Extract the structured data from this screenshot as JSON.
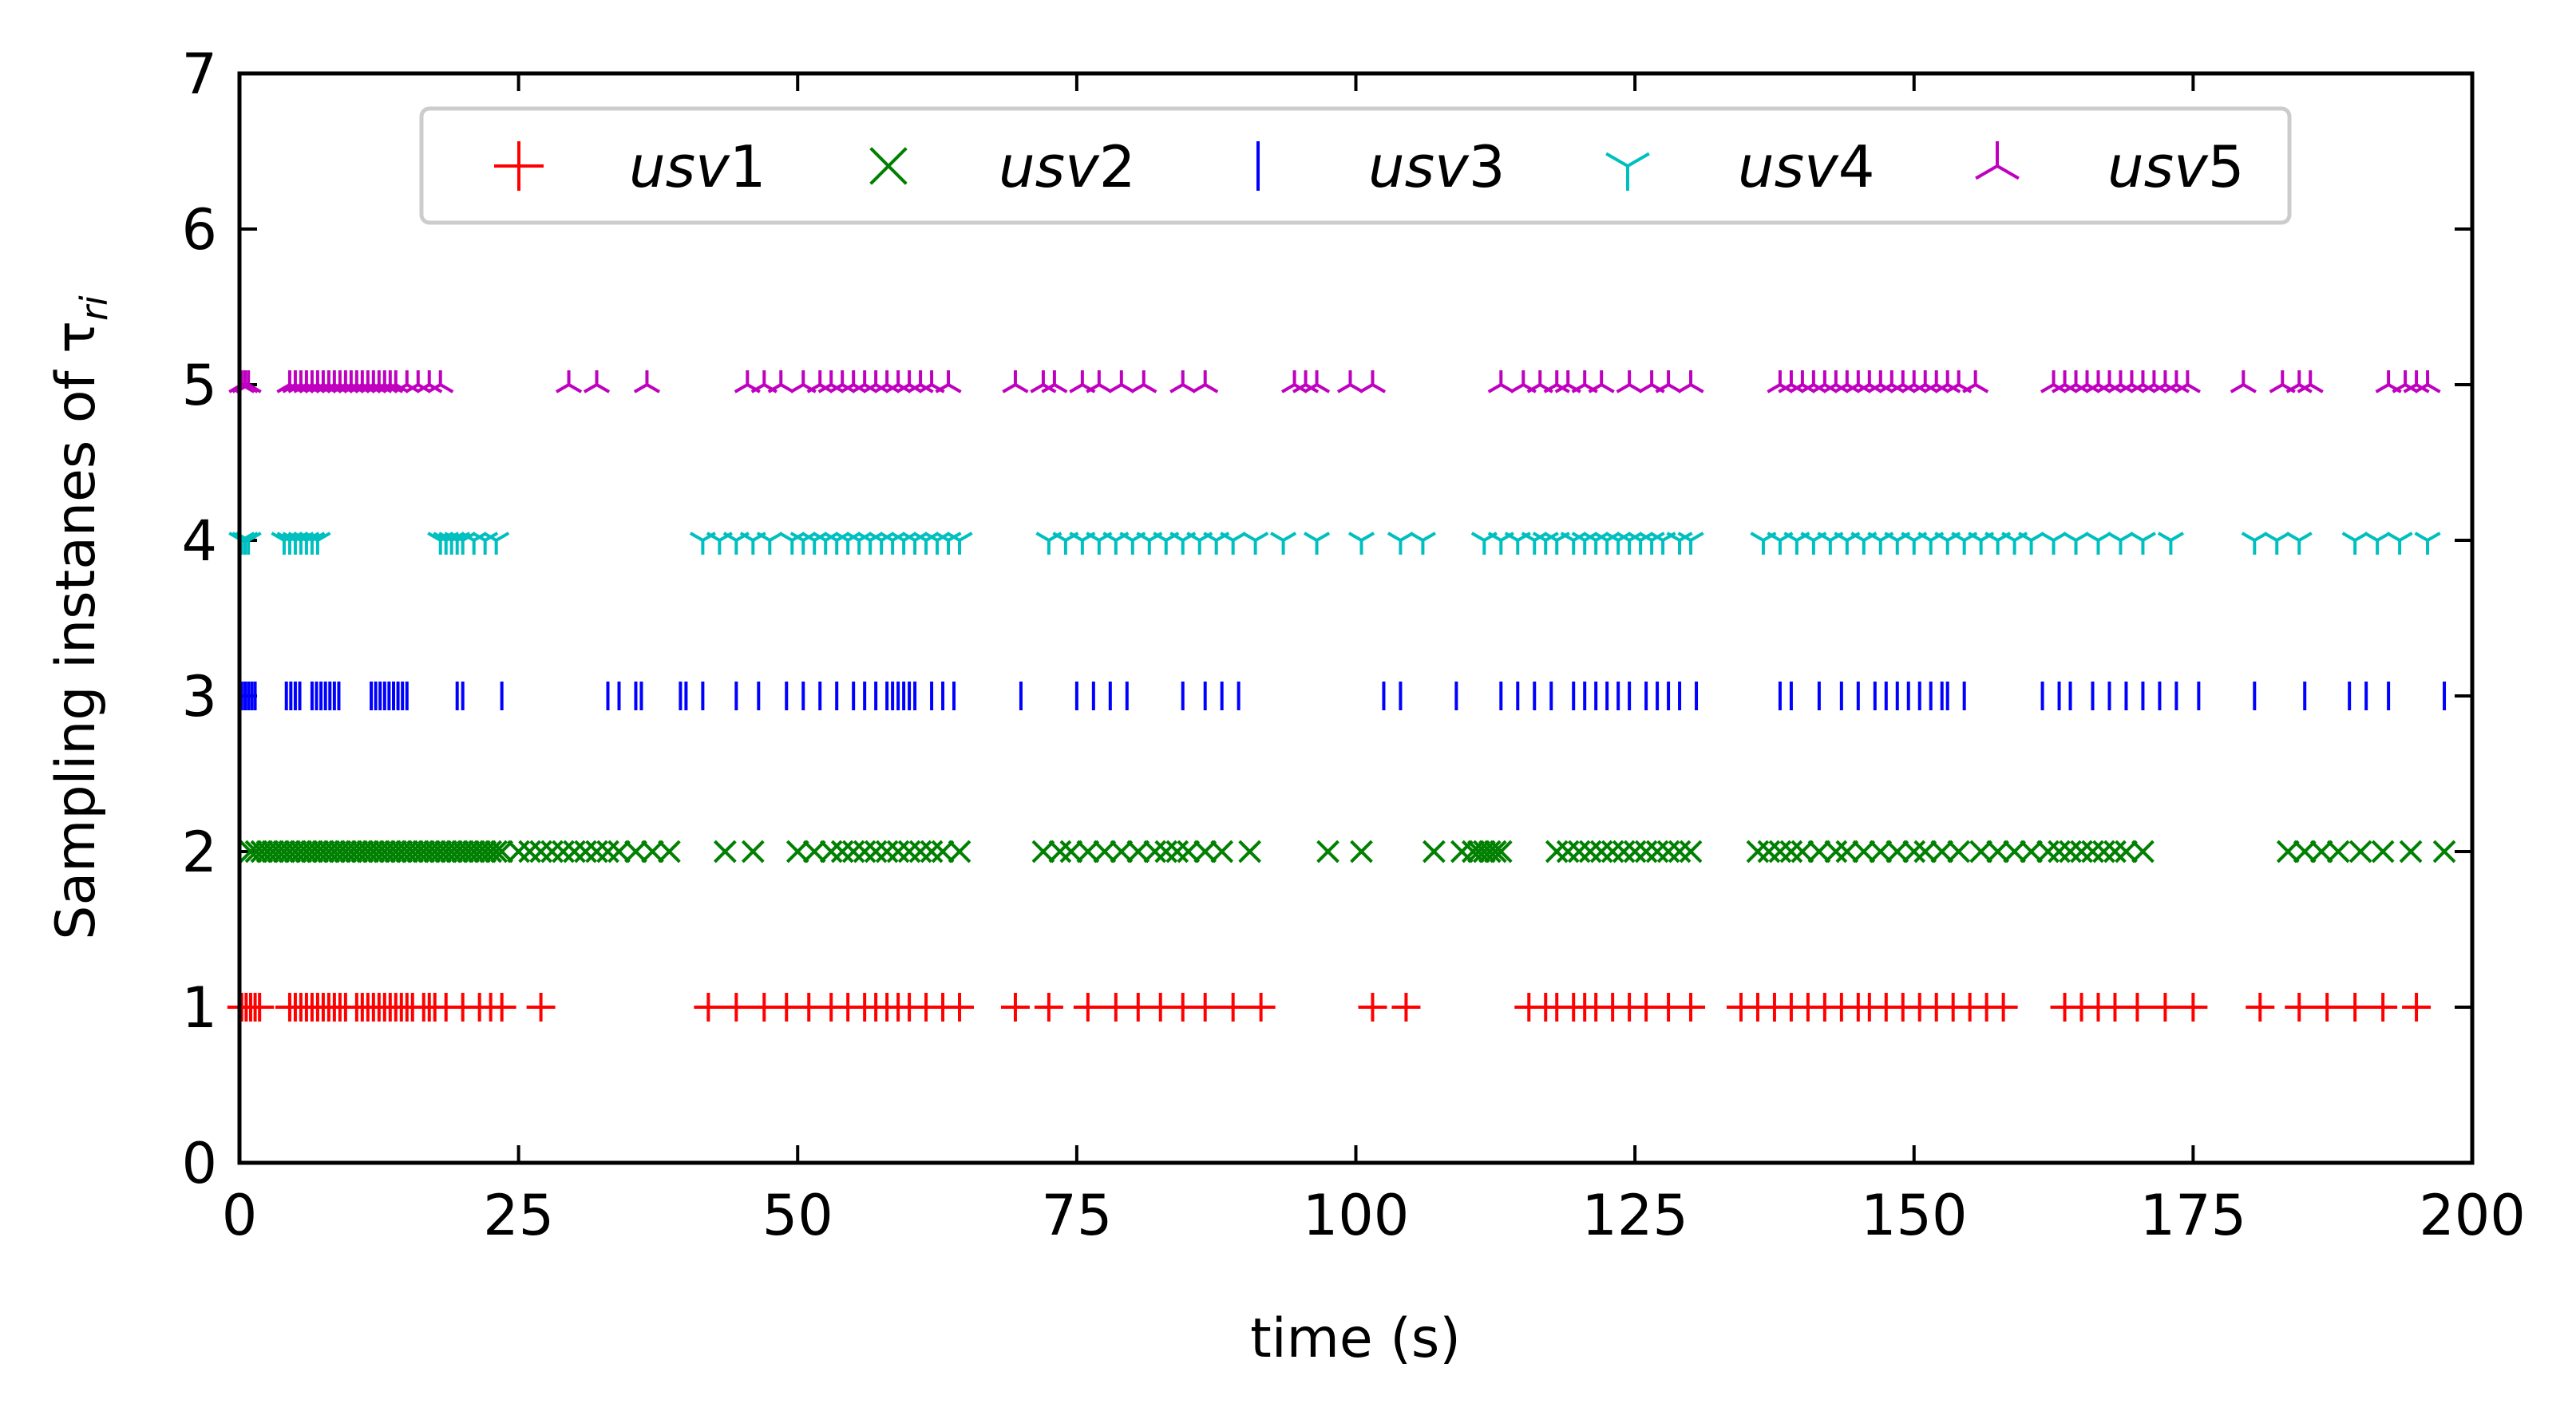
{
  "chart_data": {
    "type": "scatter",
    "title": "",
    "xlabel": "time (s)",
    "ylabel": "Sampling instanes of τ",
    "ylabel_subscript": "ri",
    "xlim": [
      0,
      200
    ],
    "ylim": [
      0,
      7
    ],
    "xticks": [
      0,
      25,
      50,
      75,
      100,
      125,
      150,
      175,
      200
    ],
    "yticks": [
      0,
      1,
      2,
      3,
      4,
      5,
      6,
      7
    ],
    "grid": false,
    "legend_placement": "top-center",
    "legend_columns": 5,
    "series": [
      {
        "name": "usv1",
        "name_base": "usv",
        "name_number": "1",
        "y": 1,
        "marker": "plus",
        "color": "#ff0000",
        "x": [
          0.2,
          0.6,
          1.0,
          1.4,
          1.8,
          4.5,
          5.0,
          5.5,
          6.0,
          6.5,
          7.0,
          7.5,
          8.0,
          8.5,
          9.0,
          9.5,
          10.5,
          11.0,
          11.5,
          12.0,
          12.5,
          13.0,
          13.5,
          14.0,
          14.5,
          15.0,
          15.5,
          16.5,
          17.0,
          17.5,
          18.5,
          20.0,
          21.5,
          22.5,
          23.5,
          27.0,
          42.0,
          44.5,
          47.0,
          49.0,
          51.0,
          53.0,
          54.5,
          56.0,
          57.0,
          58.0,
          59.0,
          60.0,
          61.5,
          63.0,
          64.5,
          69.5,
          72.5,
          76.0,
          78.5,
          80.5,
          82.5,
          84.5,
          86.5,
          89.0,
          91.5,
          101.5,
          104.5,
          115.5,
          117.0,
          118.0,
          119.5,
          120.5,
          121.5,
          123.0,
          124.5,
          126.0,
          128.0,
          130.0,
          134.5,
          136.0,
          137.5,
          139.0,
          140.5,
          142.0,
          143.5,
          145.0,
          146.0,
          147.5,
          149.0,
          150.5,
          152.0,
          153.5,
          155.0,
          156.5,
          158.0,
          163.5,
          165.0,
          166.5,
          168.0,
          170.0,
          172.5,
          175.0,
          181.0,
          184.5,
          187.0,
          189.5,
          192.0,
          195.0
        ]
      },
      {
        "name": "usv2",
        "name_base": "usv",
        "name_number": "2",
        "y": 2,
        "marker": "x",
        "color": "#008000",
        "x": [
          1.0,
          1.5,
          2.0,
          2.5,
          3.0,
          3.5,
          4.0,
          4.5,
          5.0,
          5.5,
          6.0,
          6.5,
          7.0,
          7.5,
          8.0,
          8.5,
          9.0,
          9.5,
          10.0,
          10.5,
          11.0,
          11.5,
          12.0,
          12.5,
          13.0,
          13.5,
          14.0,
          14.5,
          15.0,
          15.5,
          16.0,
          16.5,
          17.0,
          17.5,
          18.0,
          18.5,
          19.0,
          19.5,
          20.0,
          20.5,
          21.0,
          21.5,
          22.0,
          22.5,
          23.0,
          23.5,
          25.0,
          26.0,
          27.0,
          28.0,
          29.0,
          30.0,
          31.0,
          32.0,
          33.0,
          34.0,
          35.5,
          37.0,
          38.5,
          43.5,
          46.0,
          50.0,
          51.5,
          53.0,
          54.0,
          55.0,
          56.0,
          57.0,
          58.0,
          59.0,
          60.0,
          61.0,
          62.0,
          63.0,
          64.5,
          72.0,
          73.5,
          74.5,
          76.0,
          77.5,
          79.0,
          80.5,
          82.0,
          83.0,
          84.0,
          85.0,
          86.5,
          88.0,
          90.5,
          97.5,
          100.5,
          107.0,
          109.5,
          110.5,
          111.0,
          111.5,
          112.0,
          112.5,
          113.0,
          118.0,
          119.0,
          120.0,
          121.0,
          122.0,
          123.0,
          124.0,
          125.0,
          126.0,
          127.0,
          128.0,
          129.0,
          130.0,
          136.0,
          137.0,
          138.0,
          139.0,
          140.0,
          141.5,
          143.0,
          144.0,
          145.5,
          147.0,
          148.5,
          150.0,
          151.0,
          152.5,
          154.0,
          156.0,
          157.5,
          159.0,
          160.5,
          162.0,
          163.0,
          164.0,
          165.0,
          166.0,
          167.0,
          168.0,
          169.0,
          170.5,
          183.5,
          185.0,
          186.5,
          188.0,
          190.0,
          192.0,
          194.5,
          197.5
        ]
      },
      {
        "name": "usv3",
        "name_base": "usv",
        "name_number": "3",
        "y": 3,
        "marker": "vline",
        "color": "#0000ff",
        "x": [
          0.2,
          0.5,
          0.8,
          1.1,
          1.4,
          4.2,
          4.6,
          5.0,
          5.4,
          6.5,
          6.9,
          7.3,
          7.7,
          8.1,
          8.5,
          8.9,
          11.8,
          12.2,
          12.6,
          13.0,
          13.4,
          13.8,
          14.2,
          14.6,
          15.0,
          19.5,
          20.0,
          23.5,
          33.0,
          34.0,
          35.5,
          36.0,
          39.5,
          40.0,
          41.5,
          44.5,
          46.5,
          49.0,
          50.5,
          52.0,
          53.5,
          55.0,
          56.0,
          57.0,
          58.0,
          58.5,
          59.0,
          59.5,
          60.0,
          60.5,
          62.0,
          63.0,
          64.0,
          70.0,
          75.0,
          76.5,
          78.0,
          79.5,
          84.5,
          86.5,
          88.0,
          89.5,
          102.5,
          104.0,
          109.0,
          113.0,
          114.5,
          116.0,
          117.5,
          119.5,
          120.5,
          121.5,
          122.5,
          123.5,
          124.5,
          126.0,
          127.0,
          128.0,
          129.0,
          130.5,
          138.0,
          139.0,
          141.5,
          143.5,
          145.0,
          146.5,
          147.5,
          148.5,
          149.5,
          150.5,
          151.5,
          152.5,
          153.0,
          154.5,
          161.5,
          163.0,
          164.0,
          166.0,
          167.5,
          169.0,
          170.5,
          172.0,
          173.5,
          175.5,
          180.5,
          185.0,
          189.0,
          190.5,
          192.5,
          197.5
        ]
      },
      {
        "name": "usv4",
        "name_base": "usv",
        "name_number": "4",
        "y": 4,
        "marker": "tri_down",
        "color": "#00bfbf",
        "x": [
          0.2,
          0.5,
          0.8,
          4.0,
          4.5,
          5.0,
          5.5,
          6.0,
          6.5,
          7.0,
          18.0,
          18.5,
          19.0,
          19.5,
          20.0,
          21.0,
          22.0,
          23.0,
          41.5,
          43.0,
          44.5,
          46.0,
          47.5,
          49.5,
          50.5,
          51.5,
          52.5,
          53.5,
          54.5,
          55.5,
          56.5,
          57.5,
          58.5,
          59.5,
          60.5,
          61.5,
          62.5,
          63.5,
          64.5,
          72.5,
          74.0,
          75.5,
          77.0,
          78.5,
          80.0,
          81.5,
          83.0,
          84.5,
          86.0,
          87.5,
          89.0,
          91.0,
          93.5,
          96.5,
          100.5,
          104.0,
          106.0,
          111.5,
          113.0,
          114.5,
          116.0,
          117.0,
          118.0,
          119.5,
          120.5,
          121.5,
          122.5,
          123.5,
          124.5,
          125.5,
          126.5,
          127.5,
          129.0,
          130.0,
          136.5,
          138.0,
          139.5,
          141.0,
          142.5,
          144.0,
          145.5,
          147.0,
          148.5,
          150.0,
          151.5,
          153.0,
          154.5,
          156.0,
          157.5,
          159.0,
          160.5,
          162.5,
          164.5,
          166.5,
          168.5,
          170.5,
          173.0,
          180.5,
          182.5,
          184.5,
          189.5,
          191.5,
          193.5,
          196.0
        ]
      },
      {
        "name": "usv5",
        "name_base": "usv",
        "name_number": "5",
        "y": 5,
        "marker": "tri_up",
        "color": "#bf00bf",
        "x": [
          0.2,
          0.5,
          0.8,
          4.5,
          5.0,
          5.5,
          6.0,
          6.5,
          7.0,
          7.5,
          8.0,
          8.5,
          9.0,
          9.5,
          10.0,
          10.5,
          11.0,
          11.5,
          12.0,
          12.5,
          13.0,
          13.5,
          14.0,
          15.0,
          16.0,
          17.0,
          18.0,
          29.5,
          32.0,
          36.5,
          45.5,
          47.0,
          48.5,
          50.5,
          52.0,
          53.0,
          54.0,
          55.0,
          56.0,
          57.0,
          58.0,
          59.0,
          60.0,
          61.0,
          62.0,
          63.5,
          69.5,
          72.0,
          73.0,
          75.5,
          77.0,
          79.0,
          81.0,
          84.5,
          86.5,
          94.5,
          95.5,
          96.5,
          99.5,
          101.5,
          113.0,
          115.0,
          116.5,
          118.0,
          119.0,
          120.5,
          122.0,
          124.5,
          126.5,
          128.0,
          130.0,
          138.0,
          139.0,
          140.0,
          141.0,
          142.0,
          143.0,
          144.0,
          145.0,
          146.0,
          147.0,
          148.0,
          149.0,
          150.0,
          151.0,
          152.0,
          153.0,
          154.0,
          155.5,
          162.5,
          163.5,
          164.5,
          165.5,
          166.5,
          167.5,
          168.5,
          169.5,
          170.5,
          171.5,
          172.5,
          173.5,
          174.5,
          179.5,
          183.0,
          184.5,
          185.5,
          192.5,
          194.0,
          195.0,
          196.0
        ]
      }
    ]
  }
}
